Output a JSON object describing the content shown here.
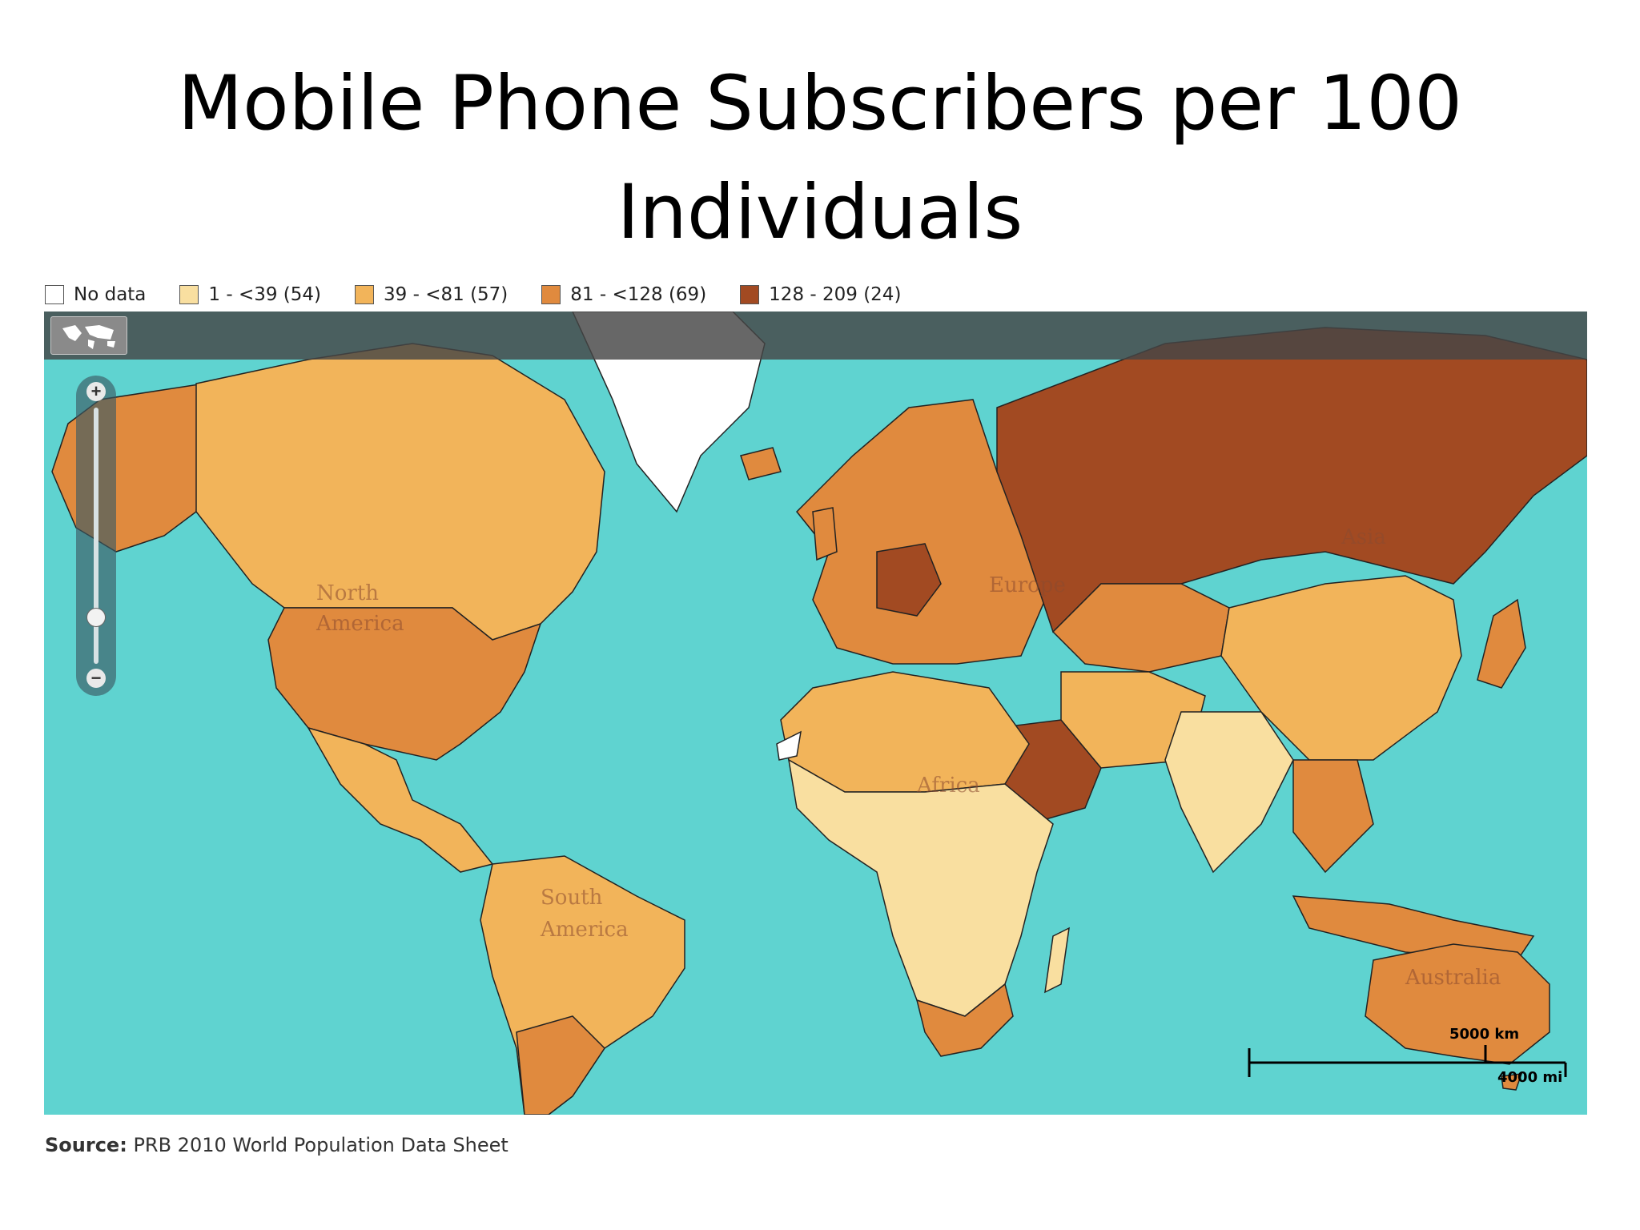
{
  "title": "Mobile Phone Subscribers per 100 Individuals",
  "legend": [
    {
      "label": "No data",
      "color": "#ffffff"
    },
    {
      "label": "1 - <39 (54)",
      "color": "#f9dfa0"
    },
    {
      "label": "39 - <81 (57)",
      "color": "#f2b45a"
    },
    {
      "label": "81 - <128 (69)",
      "color": "#e08a3e"
    },
    {
      "label": "128 - 209 (24)",
      "color": "#a24a22"
    }
  ],
  "map": {
    "ocean_color": "#5fd3d0",
    "continent_labels": {
      "north_america_1": "North",
      "north_america_2": "America",
      "europe": "Europe",
      "asia": "Asia",
      "africa": "Africa",
      "south_america_1": "South",
      "south_america_2": "America",
      "australia": "Australia"
    },
    "toolbar": {
      "world_icon": "world-map-icon"
    },
    "zoom": {
      "in_label": "+",
      "out_label": "−"
    },
    "scale": {
      "km": "5000 km",
      "mi": "4000 mi"
    }
  },
  "source": {
    "label": "Source:",
    "text": "PRB 2010 World Population Data Sheet"
  }
}
